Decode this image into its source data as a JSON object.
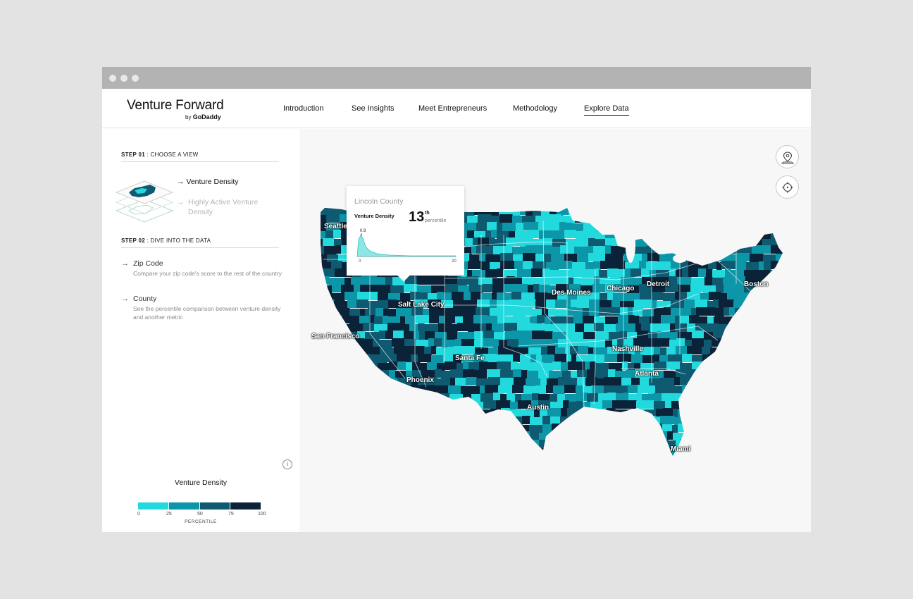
{
  "header": {
    "logo": "Venture Forward",
    "logo_by": "by",
    "logo_brand": "GoDaddy",
    "nav": [
      {
        "label": "Introduction"
      },
      {
        "label": "See Insights"
      },
      {
        "label": "Meet Entrepreneurs"
      },
      {
        "label": "Methodology"
      },
      {
        "label": "Explore Data",
        "active": true
      }
    ]
  },
  "sidebar": {
    "step1": {
      "num": "STEP 01",
      "label": " : CHOOSE A VIEW"
    },
    "views": [
      {
        "label": "Venture Density",
        "selected": true
      },
      {
        "label": "Highly Active Venture Density",
        "selected": false
      }
    ],
    "step2": {
      "num": "STEP 02",
      "label": " : DIVE INTO THE DATA"
    },
    "dive": [
      {
        "title": "Zip Code",
        "desc": "Compare your zip code's score to the rest of the country"
      },
      {
        "title": "County",
        "desc": "See the percentile comparison between venture density and another metric"
      }
    ],
    "arrow": "→",
    "info_glyph": "i"
  },
  "legend": {
    "title": "Venture Density",
    "ticks": [
      "0",
      "25",
      "50",
      "75",
      "100"
    ],
    "caption": "PERCENTILE",
    "colors": [
      "#22d9dd",
      "#0c96a8",
      "#0e5a70",
      "#0b2338"
    ]
  },
  "map": {
    "cities": [
      "Seattle",
      "Salt Lake City",
      "San Francisco",
      "Santa Fe",
      "Phoenix",
      "Des Moines",
      "Chicago",
      "Detroit",
      "Boston",
      "Nashville",
      "Atlanta",
      "Austin",
      "Miami"
    ],
    "buttons": [
      {
        "icon": "location-pin-icon"
      },
      {
        "icon": "crosshair-icon"
      }
    ]
  },
  "tooltip": {
    "county": "Lincoln County",
    "metric": "Venture Density",
    "value": "13",
    "suffix": "th",
    "unit": "percentile",
    "marker_value": "0.9",
    "axis_min": "0",
    "axis_max": "20"
  }
}
